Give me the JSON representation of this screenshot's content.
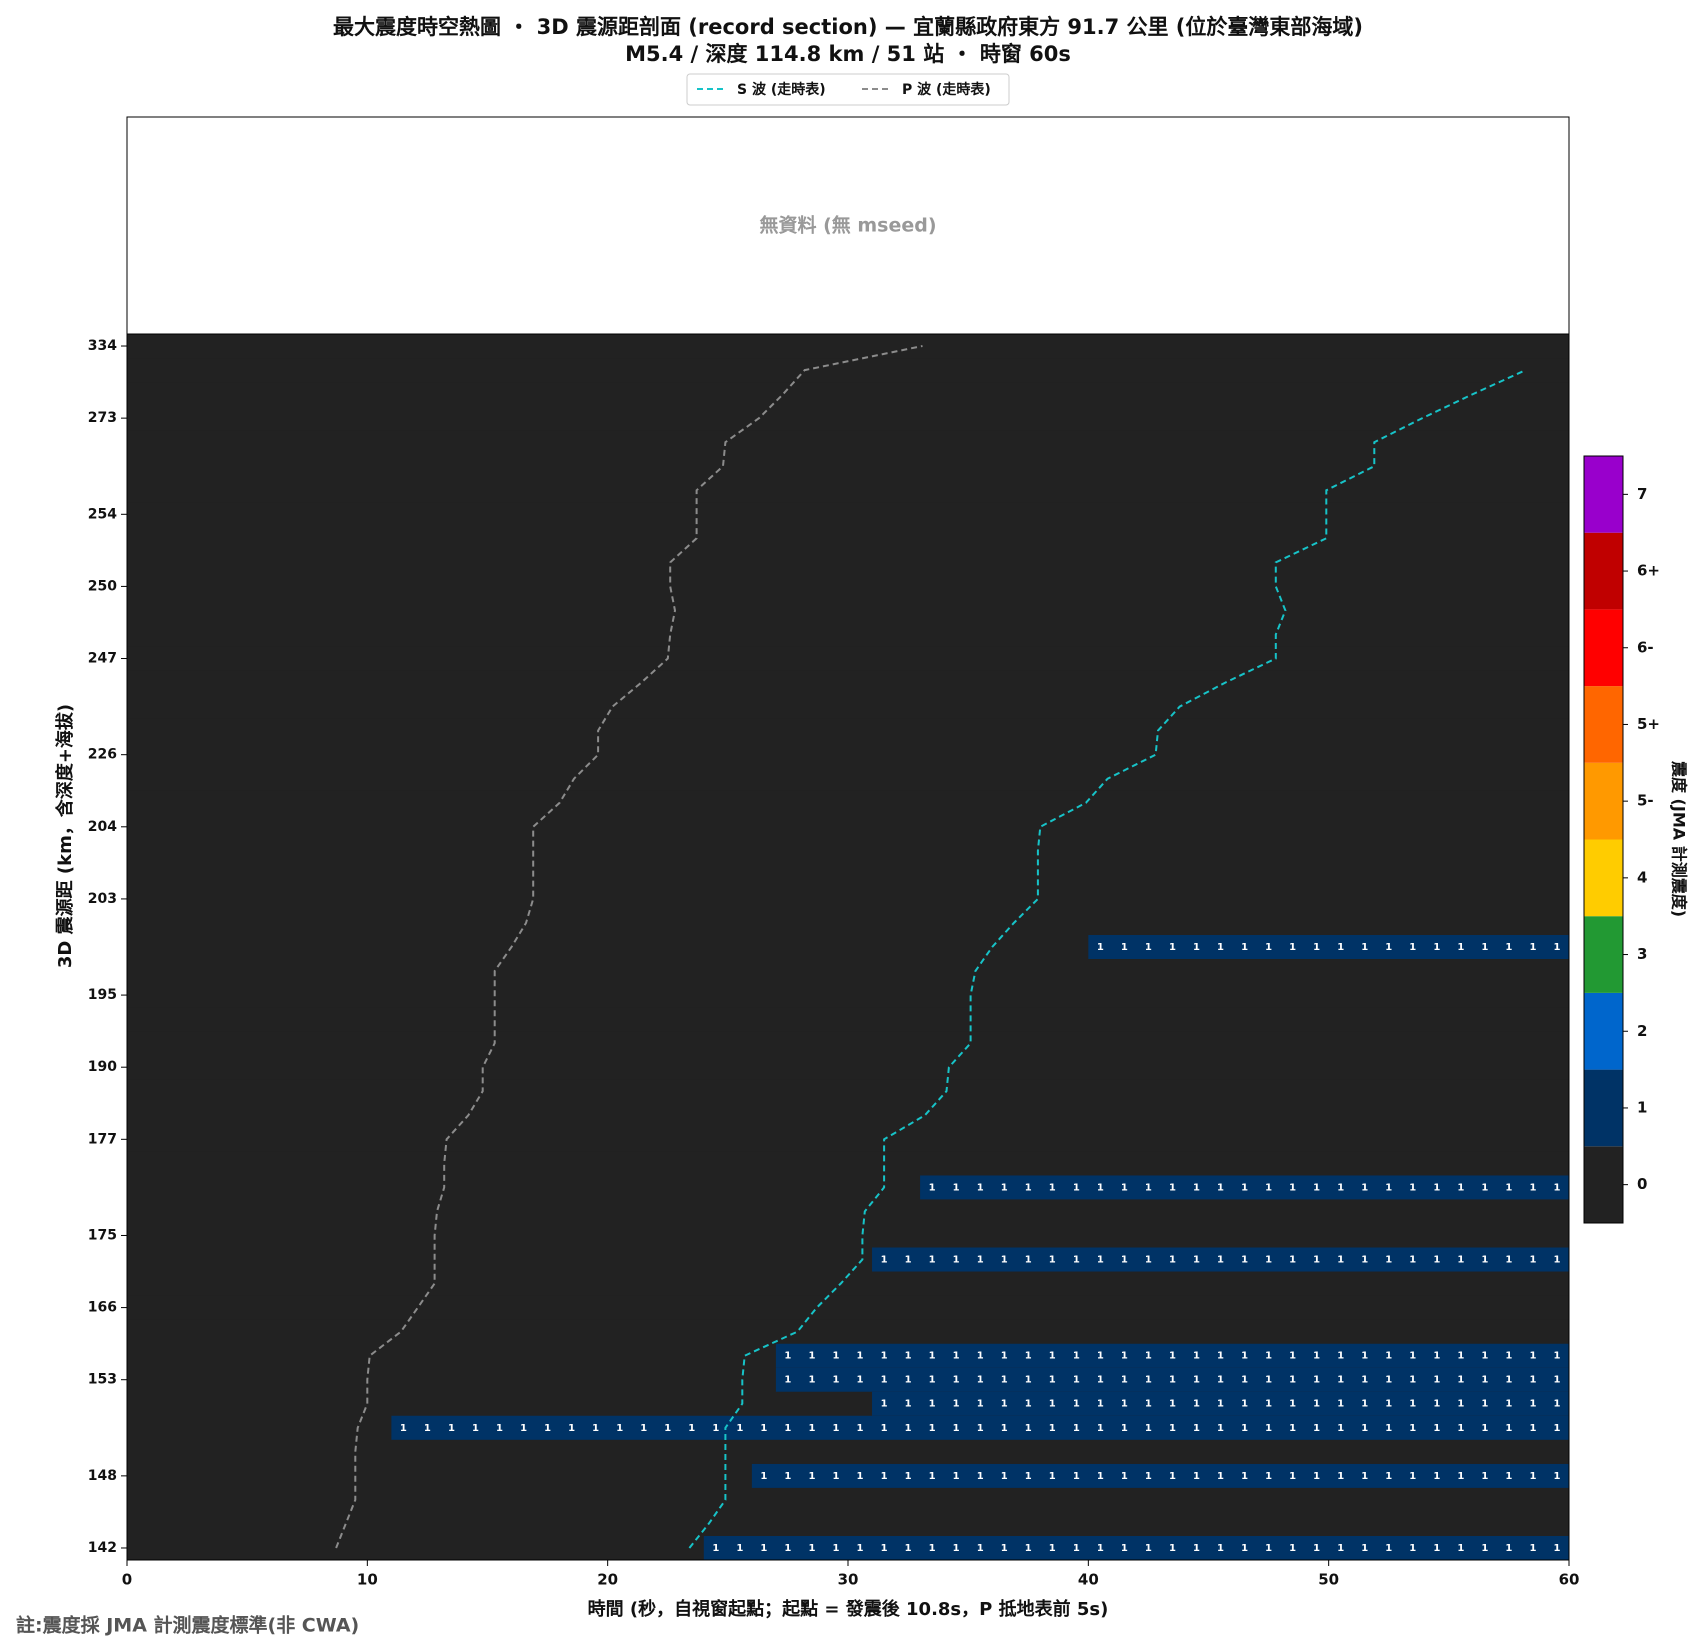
{
  "chart_data": {
    "type": "record_section",
    "title": "最大震度時空熱圖 ・ 3D 震源距剖面 (record section) — 宜蘭縣政府東方  91.7  公里 (位於臺灣東部海域)",
    "subtitle": "M5.4 / 深度 114.8 km / 51 站 ・ 時窗 60s",
    "no_data_text": "無資料 (無 mseed)",
    "footnote": "註:震度採 JMA 計測震度標準(非 CWA)",
    "x_label": "時間 (秒，自視窗起點；起點 = 發震後 10.8s，P 抵地表前 5s)",
    "y_label": "3D 震源距 (km，含深度+海拔)",
    "xlim": [
      0,
      60
    ],
    "xticks": [
      0,
      10,
      20,
      30,
      40,
      50,
      60
    ],
    "categories": [
      "142",
      null,
      null,
      "148",
      null,
      null,
      null,
      "153",
      null,
      null,
      "166",
      null,
      null,
      "175",
      null,
      null,
      null,
      "177",
      null,
      null,
      "190",
      null,
      null,
      "195",
      null,
      null,
      null,
      "203",
      null,
      null,
      "204",
      null,
      null,
      "226",
      null,
      null,
      null,
      "247",
      null,
      null,
      "250",
      null,
      null,
      "254",
      null,
      null,
      null,
      "273",
      null,
      null,
      "334"
    ],
    "intensity": [
      1,
      0,
      0,
      1,
      0,
      1,
      1,
      1,
      1,
      0,
      0,
      0,
      1,
      0,
      0,
      1,
      0,
      0,
      0,
      0,
      0,
      0,
      0,
      0,
      0,
      1,
      0,
      0,
      0,
      0,
      0,
      0,
      0,
      0,
      0,
      0,
      0,
      0,
      0,
      0,
      0,
      0,
      0,
      0,
      0,
      0,
      0,
      0,
      0,
      0,
      0
    ],
    "onset": [
      24,
      null,
      null,
      26,
      null,
      11,
      31,
      27,
      27,
      null,
      null,
      null,
      31,
      null,
      null,
      33,
      null,
      null,
      null,
      null,
      null,
      null,
      null,
      null,
      null,
      40,
      null,
      null,
      null,
      null,
      null,
      null,
      null,
      null,
      null,
      null,
      null,
      null,
      null,
      null,
      null,
      null,
      null,
      null,
      null,
      null,
      null,
      null,
      null,
      null,
      null
    ],
    "series": [
      {
        "name": "S 波 (走時表)",
        "color": "#17c3c8",
        "values": [
          23.4,
          24.2,
          24.9,
          24.9,
          24.9,
          24.9,
          25.6,
          25.6,
          25.7,
          27.9,
          28.7,
          29.7,
          30.6,
          30.6,
          30.7,
          31.5,
          31.5,
          31.5,
          33.2,
          34.1,
          34.2,
          35.1,
          35.1,
          35.1,
          35.3,
          36.0,
          36.9,
          37.9,
          37.9,
          37.9,
          38.0,
          39.9,
          40.8,
          42.8,
          42.9,
          43.8,
          45.7,
          47.8,
          47.8,
          48.2,
          47.8,
          47.8,
          49.9,
          49.9,
          49.9,
          51.9,
          51.9,
          53.9,
          56.0,
          58.2,
          null
        ]
      },
      {
        "name": "P 波 (走時表)",
        "color": "#8c8c8c",
        "values": [
          8.7,
          9.1,
          9.5,
          9.5,
          9.5,
          9.6,
          10.0,
          10.0,
          10.1,
          11.4,
          12.1,
          12.8,
          12.8,
          12.8,
          12.9,
          13.2,
          13.2,
          13.3,
          14.2,
          14.8,
          14.8,
          15.3,
          15.3,
          15.3,
          15.3,
          16.0,
          16.6,
          16.9,
          16.9,
          16.9,
          16.9,
          18.0,
          18.6,
          19.6,
          19.6,
          20.2,
          21.4,
          22.5,
          22.6,
          22.8,
          22.6,
          22.6,
          23.7,
          23.7,
          23.7,
          24.8,
          24.9,
          26.3,
          27.3,
          28.2,
          33.1
        ]
      }
    ],
    "colorbar": {
      "label": "震度 (JMA 計測震度)",
      "levels": [
        {
          "label": "0",
          "color": "#222222"
        },
        {
          "label": "1",
          "color": "#003366"
        },
        {
          "label": "2",
          "color": "#0066cc"
        },
        {
          "label": "3",
          "color": "#229933"
        },
        {
          "label": "4",
          "color": "#ffcc00"
        },
        {
          "label": "5-",
          "color": "#ff9900"
        },
        {
          "label": "5+",
          "color": "#ff6600"
        },
        {
          "label": "6-",
          "color": "#ff0000"
        },
        {
          "label": "6+",
          "color": "#c00000"
        },
        {
          "label": "7",
          "color": "#9900cc"
        }
      ]
    }
  }
}
